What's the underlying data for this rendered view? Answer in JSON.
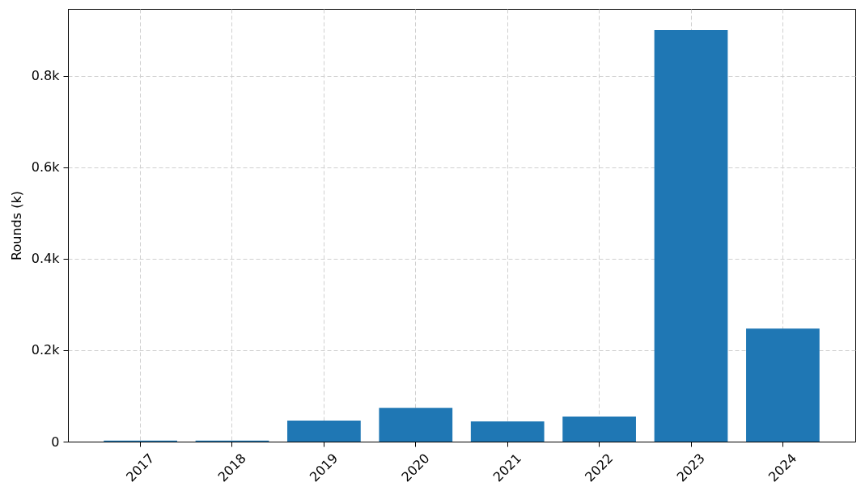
{
  "chart_data": {
    "type": "bar",
    "ylabel": "Rounds (k)",
    "categories": [
      "2017",
      "2018",
      "2019",
      "2020",
      "2021",
      "2022",
      "2023",
      "2024"
    ],
    "values": [
      0.002,
      0.002,
      0.046,
      0.074,
      0.044,
      0.055,
      0.9,
      0.247
    ],
    "color": "#1f77b4",
    "ylim": [
      0,
      0.946
    ],
    "yticks": [
      0,
      {
        "value": 0.2,
        "label": "0.2k"
      },
      {
        "value": 0.4,
        "label": "0.4k"
      },
      {
        "value": 0.6,
        "label": "0.6k"
      },
      {
        "value": 0.8,
        "label": "0.8k"
      }
    ],
    "grid": true
  }
}
